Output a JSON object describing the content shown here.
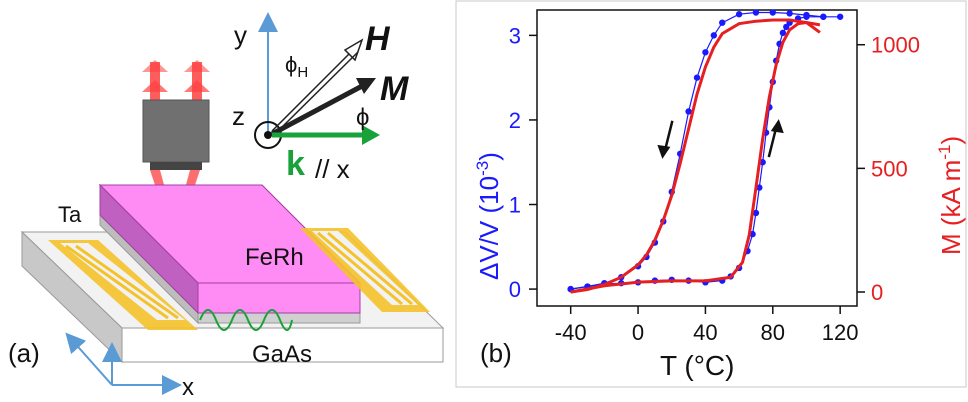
{
  "colors": {
    "blue": "#1a1aff",
    "red": "#e62020",
    "green": "#19a23a",
    "magenta": "#ff8cf5",
    "gold": "#f4c22b",
    "axis_blue": "#5a9bd5"
  },
  "panel_a": {
    "label": "(a)",
    "coord_y": "y",
    "coord_z": "z",
    "coord_x": "x",
    "phi_h": "ϕ",
    "phi_h_sub": "H",
    "h_label": "H",
    "m_label": "M",
    "phi": "ϕ",
    "k_label": "k",
    "k_parallel": "// x",
    "ta_label": "Ta",
    "ferh_label": "FeRh",
    "gaas_label": "GaAs",
    "bottom_x": "x"
  },
  "panel_b": {
    "label": "(b)",
    "xlabel": "T (°C)",
    "ylabel_left": "ΔV/V (10",
    "ylabel_left_exp": "-3",
    "ylabel_left_close": ")",
    "ylabel_right": "M (kA m",
    "ylabel_right_exp": "-1",
    "ylabel_right_close": ")",
    "xticks": [
      "-40",
      "0",
      "40",
      "80",
      "120"
    ],
    "yticks_left": [
      "0",
      "1",
      "2",
      "3"
    ],
    "yticks_right": [
      "0",
      "500",
      "1000"
    ]
  },
  "chart_data": {
    "type": "line",
    "xlabel": "T (°C)",
    "ylabel": "ΔV/V (10-3)",
    "ylabel_right": "M (kA m-1)",
    "xlim": [
      -60,
      130
    ],
    "ylim_left": [
      -0.2,
      3.3
    ],
    "ylim_right": [
      0,
      1100
    ],
    "xticks": [
      -40,
      0,
      40,
      80,
      120
    ],
    "yticks_left": [
      0,
      1,
      2,
      3
    ],
    "yticks_right": [
      0,
      500,
      1000
    ],
    "series": [
      {
        "axis": "left",
        "style": "dots",
        "color": "#1a1aff",
        "branch": "heating",
        "x": [
          -40,
          -30,
          -20,
          -10,
          0,
          10,
          20,
          30,
          40,
          50,
          55,
          60,
          65,
          68,
          70,
          72,
          74,
          76,
          78,
          80,
          82,
          84,
          86,
          88,
          90,
          95,
          100,
          110,
          120
        ],
        "y": [
          0.0,
          0.03,
          0.06,
          0.07,
          0.08,
          0.1,
          0.11,
          0.1,
          0.08,
          0.1,
          0.15,
          0.25,
          0.45,
          0.65,
          0.9,
          1.2,
          1.5,
          1.85,
          2.15,
          2.45,
          2.7,
          2.9,
          3.03,
          3.1,
          3.15,
          3.2,
          3.22,
          3.22,
          3.22
        ]
      },
      {
        "axis": "left",
        "style": "dots",
        "color": "#1a1aff",
        "branch": "cooling",
        "x": [
          110,
          100,
          90,
          80,
          70,
          60,
          50,
          45,
          40,
          35,
          30,
          25,
          20,
          15,
          10,
          5,
          0,
          -10,
          -20,
          -30,
          -40
        ],
        "y": [
          3.22,
          3.24,
          3.26,
          3.27,
          3.27,
          3.25,
          3.15,
          3.0,
          2.8,
          2.5,
          2.1,
          1.6,
          1.15,
          0.8,
          0.55,
          0.38,
          0.27,
          0.14,
          0.07,
          0.03,
          0.0
        ]
      },
      {
        "axis": "right",
        "style": "line",
        "color": "#e62020",
        "branch": "heating",
        "x": [
          -40,
          -20,
          0,
          20,
          40,
          55,
          62,
          66,
          70,
          74,
          78,
          82,
          86,
          90,
          95,
          100,
          108
        ],
        "y": [
          0,
          25,
          40,
          45,
          45,
          60,
          120,
          230,
          420,
          620,
          790,
          920,
          1010,
          1060,
          1085,
          1090,
          1080
        ]
      },
      {
        "axis": "right",
        "style": "line",
        "color": "#e62020",
        "branch": "cooling",
        "x": [
          108,
          100,
          90,
          80,
          70,
          60,
          50,
          45,
          40,
          35,
          30,
          25,
          20,
          15,
          10,
          5,
          0,
          -10,
          -20,
          -30,
          -40
        ],
        "y": [
          1050,
          1090,
          1100,
          1100,
          1095,
          1085,
          1045,
          990,
          910,
          800,
          660,
          520,
          390,
          290,
          210,
          150,
          110,
          60,
          30,
          10,
          0
        ]
      }
    ],
    "annotations": [
      {
        "type": "arrow",
        "direction": "down",
        "x": 18,
        "y": 1.8
      },
      {
        "type": "arrow",
        "direction": "up",
        "x": 80,
        "y": 1.75
      }
    ]
  }
}
